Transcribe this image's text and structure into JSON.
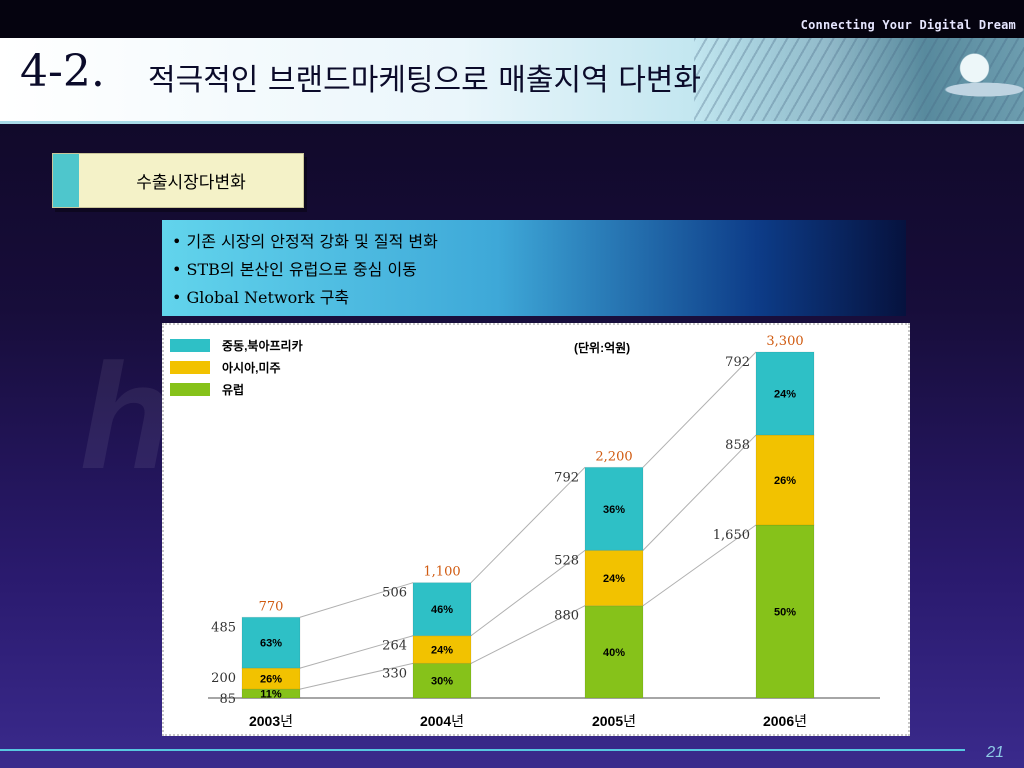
{
  "header": {
    "tagline": "Connecting Your Digital Dream",
    "title_number": "4-2.",
    "title": "적극적인 브랜드마케팅으로 매출지역 다변화"
  },
  "section_label": "수출시장다변화",
  "bullets": [
    "• 기존 시장의 안정적 강화 및 질적 변화",
    "• STB의 본산인 유럽으로 중심 이동",
    "• Global Network 구축"
  ],
  "watermark": "homecast",
  "page_number": "21",
  "colors": {
    "mideast_africa": "#2ec0c6",
    "asia_america": "#f2c200",
    "europe": "#86c21a",
    "total_label": "#d05a10"
  },
  "chart_data": {
    "type": "bar",
    "stacked": true,
    "unit_label": "(단위:억원)",
    "categories": [
      "2003년",
      "2004년",
      "2005년",
      "2006년"
    ],
    "category_years": [
      "2003",
      "2004",
      "2005",
      "2006"
    ],
    "category_suffix": "년",
    "totals": [
      770,
      1100,
      2200,
      3300
    ],
    "total_labels": [
      "770",
      "1,100",
      "2,200",
      "3,300"
    ],
    "series": [
      {
        "name": "유럽",
        "color": "#86c21a",
        "values": [
          85,
          330,
          880,
          1650
        ],
        "value_labels": [
          "85",
          "330",
          "880",
          "1,650"
        ],
        "percents": [
          "11%",
          "30%",
          "40%",
          "50%"
        ]
      },
      {
        "name": "아시아,미주",
        "color": "#f2c200",
        "values": [
          200,
          264,
          528,
          858
        ],
        "value_labels": [
          "200",
          "264",
          "528",
          "858"
        ],
        "percents": [
          "26%",
          "24%",
          "24%",
          "26%"
        ]
      },
      {
        "name": "중동,북아프리카",
        "color": "#2ec0c6",
        "values": [
          485,
          506,
          792,
          792
        ],
        "value_labels": [
          "485",
          "506",
          "792",
          "792"
        ],
        "percents": [
          "63%",
          "46%",
          "36%",
          "24%"
        ]
      }
    ],
    "legend_order": [
      "중동,북아프리카",
      "아시아,미주",
      "유럽"
    ],
    "legend_colors": [
      "#2ec0c6",
      "#f2c200",
      "#86c21a"
    ],
    "ylim": [
      0,
      3300
    ]
  }
}
